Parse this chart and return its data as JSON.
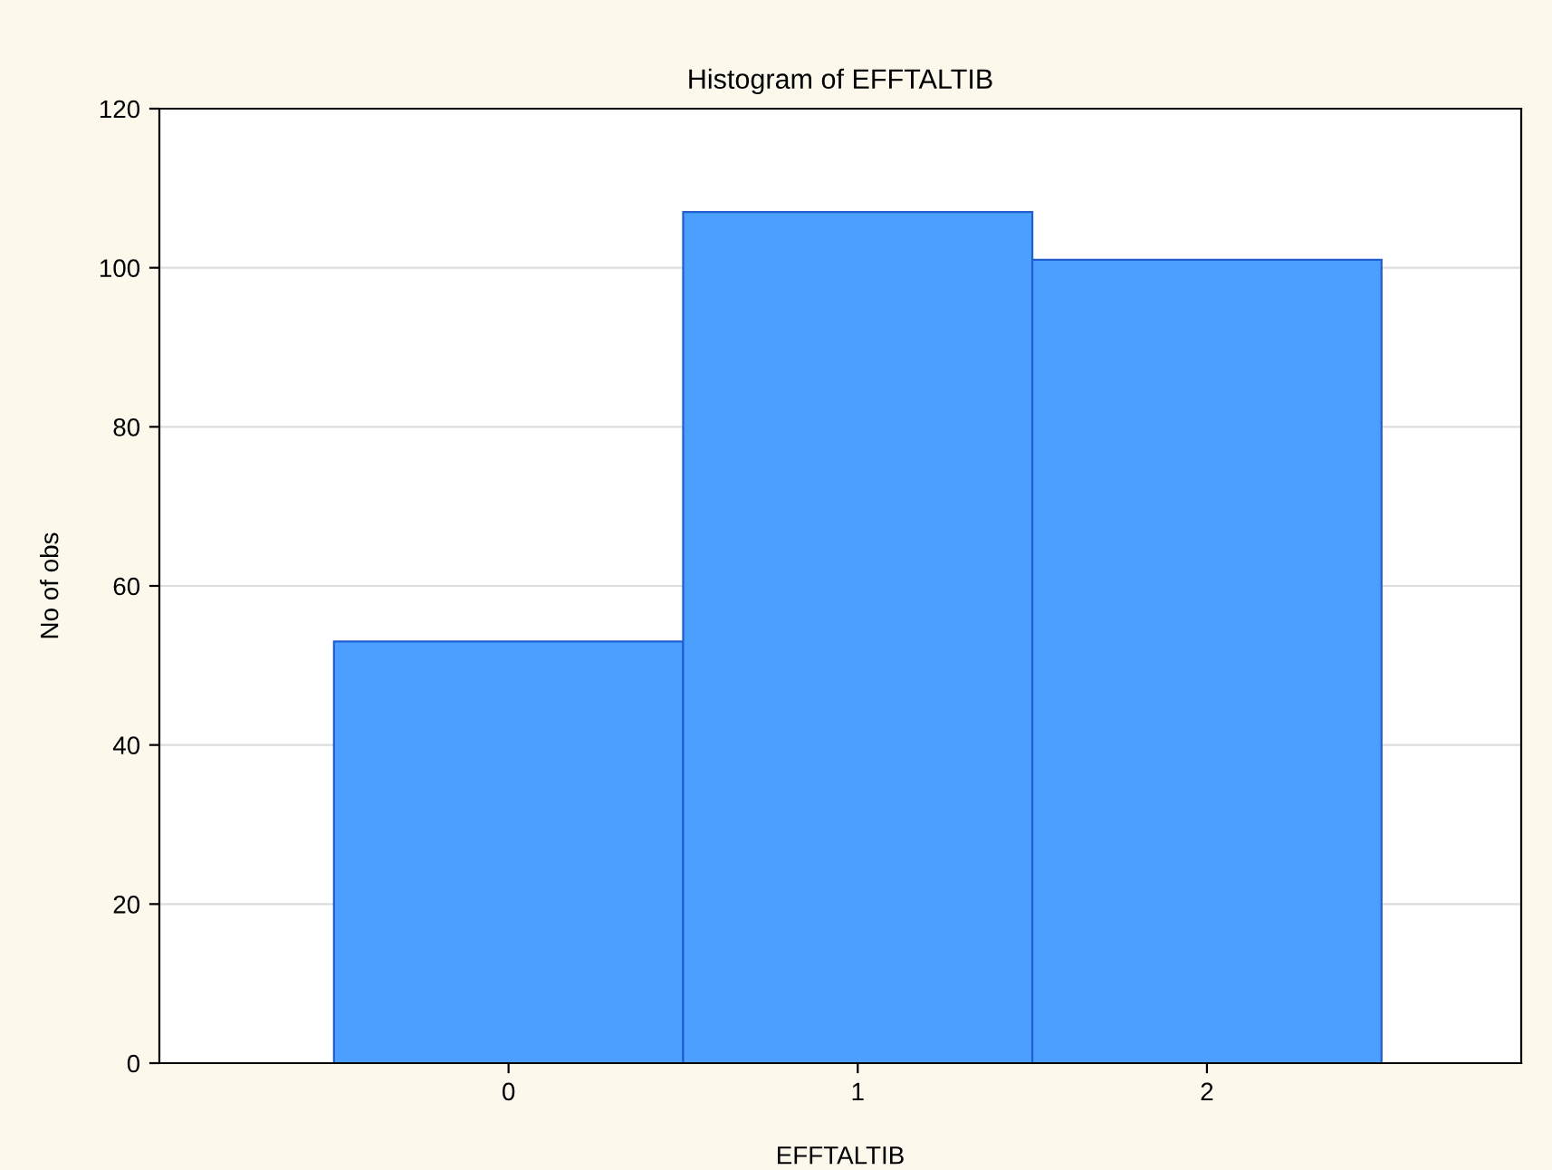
{
  "chart_data": {
    "type": "histogram",
    "title": "Histogram of EFFTALTIB",
    "xlabel": "EFFTALTIB",
    "ylabel": "No of obs",
    "bins": [
      -0.5,
      0.5,
      1.5,
      2.5
    ],
    "values": [
      53,
      107,
      101
    ],
    "color": "#4d9fff",
    "xlim": [
      -1,
      2.9
    ],
    "xticks": [
      0,
      1,
      2
    ],
    "ylim": [
      0,
      120
    ],
    "yticks": [
      0,
      20,
      40,
      60,
      80,
      100,
      120
    ],
    "grid": "y"
  }
}
